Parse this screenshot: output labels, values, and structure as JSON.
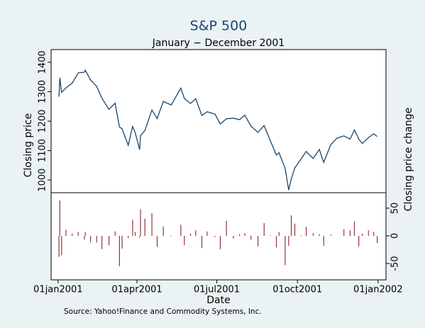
{
  "chart_data": {
    "type": "line",
    "title": "S&P 500",
    "subtitle": "January − December 2001",
    "x_label": "Date",
    "y_label": "Closing price",
    "y2_label": "Closing price change",
    "source": "Source:  Yahoo!Finance and Commodity Systems, Inc.",
    "x": [
      "2001-01-02",
      "2001-01-03",
      "2001-01-05",
      "2001-01-10",
      "2001-01-17",
      "2001-01-24",
      "2001-01-31",
      "2001-02-01",
      "2001-02-07",
      "2001-02-14",
      "2001-02-20",
      "2001-02-28",
      "2001-03-07",
      "2001-03-12",
      "2001-03-15",
      "2001-03-22",
      "2001-03-27",
      "2001-03-30",
      "2001-04-04",
      "2001-04-05",
      "2001-04-10",
      "2001-04-18",
      "2001-04-24",
      "2001-05-01",
      "2001-05-10",
      "2001-05-21",
      "2001-05-25",
      "2001-06-01",
      "2001-06-07",
      "2001-06-14",
      "2001-06-20",
      "2001-06-29",
      "2001-07-05",
      "2001-07-12",
      "2001-07-20",
      "2001-07-27",
      "2001-08-02",
      "2001-08-09",
      "2001-08-17",
      "2001-08-24",
      "2001-08-31",
      "2001-09-07",
      "2001-09-10",
      "2001-09-17",
      "2001-09-21",
      "2001-09-24",
      "2001-09-28",
      "2001-10-05",
      "2001-10-11",
      "2001-10-19",
      "2001-10-26",
      "2001-10-31",
      "2001-11-08",
      "2001-11-15",
      "2001-11-23",
      "2001-11-30",
      "2001-12-05",
      "2001-12-10",
      "2001-12-14",
      "2001-12-21",
      "2001-12-27",
      "2001-12-31"
    ],
    "xlim": [
      "2000-12-24",
      "2002-01-10"
    ],
    "xticks": [
      {
        "value": "2001-01-01",
        "label": "01jan2001"
      },
      {
        "value": "2001-04-01",
        "label": "01apr2001"
      },
      {
        "value": "2001-07-01",
        "label": "01jul2001"
      },
      {
        "value": "2001-10-01",
        "label": "01oct2001"
      },
      {
        "value": "2002-01-01",
        "label": "01jan2002"
      }
    ],
    "ylim": [
      957,
      1443
    ],
    "yticks": [
      1000,
      1100,
      1200,
      1300,
      1400
    ],
    "y2lim": [
      -79.5,
      78
    ],
    "y2ticks": [
      -50,
      0,
      50
    ],
    "series": [
      {
        "type": "line",
        "color": "#1a476f",
        "values": [
          1283,
          1347,
          1298,
          1313,
          1329,
          1364,
          1366,
          1373,
          1340,
          1318,
          1278,
          1240,
          1261,
          1180,
          1174,
          1118,
          1182,
          1160,
          1103,
          1151,
          1168,
          1238,
          1209,
          1267,
          1255,
          1312,
          1277,
          1260,
          1276,
          1219,
          1232,
          1224,
          1190,
          1208,
          1210,
          1205,
          1220,
          1183,
          1162,
          1185,
          1134,
          1085,
          1093,
          1039,
          966,
          1004,
          1041,
          1071,
          1097,
          1073,
          1104,
          1060,
          1120,
          1142,
          1150,
          1139,
          1170,
          1139,
          1124,
          1144,
          1157,
          1148
        ]
      },
      {
        "type": "spike",
        "axis": "y2",
        "color": "#90353b",
        "values": [
          -38,
          64,
          -35,
          11,
          4,
          7,
          -7,
          7,
          -12,
          -12,
          -24,
          -17,
          8,
          -55,
          -23,
          -4,
          29,
          7,
          -3,
          48,
          31,
          41,
          -20,
          17,
          -1,
          20,
          -17,
          4,
          10,
          -22,
          8,
          -2,
          -24,
          27,
          -5,
          3,
          5,
          -7,
          -19,
          23,
          1,
          -21,
          7,
          -53,
          -18,
          37,
          22,
          1,
          16,
          5,
          3,
          -18,
          2,
          0,
          12,
          10,
          26,
          -19,
          4,
          10,
          7,
          -13
        ]
      }
    ]
  }
}
